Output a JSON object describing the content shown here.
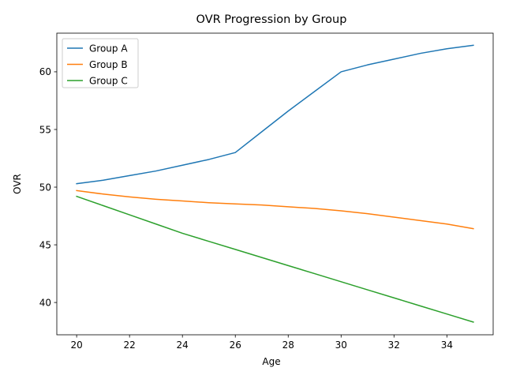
{
  "chart_data": {
    "type": "line",
    "title": "OVR Progression by Group",
    "xlabel": "Age",
    "ylabel": "OVR",
    "xlim": [
      19.25,
      35.75
    ],
    "ylim": [
      37.2,
      63.35
    ],
    "xticks": [
      20,
      22,
      24,
      26,
      28,
      30,
      32,
      34
    ],
    "yticks": [
      40,
      45,
      50,
      55,
      60
    ],
    "grid": false,
    "legend_position": "top-left",
    "x": [
      20,
      21,
      22,
      23,
      24,
      25,
      26,
      27,
      28,
      29,
      30,
      31,
      32,
      33,
      34,
      35
    ],
    "series": [
      {
        "name": "Group A",
        "color": "#1f77b4",
        "values": [
          50.3,
          50.6,
          51.0,
          51.4,
          51.9,
          52.4,
          53.0,
          54.8,
          56.6,
          58.3,
          60.0,
          60.6,
          61.1,
          61.6,
          62.0,
          62.3
        ]
      },
      {
        "name": "Group B",
        "color": "#ff7f0e",
        "values": [
          49.7,
          49.4,
          49.15,
          48.95,
          48.8,
          48.65,
          48.55,
          48.45,
          48.3,
          48.15,
          47.95,
          47.7,
          47.4,
          47.1,
          46.8,
          46.4
        ]
      },
      {
        "name": "Group C",
        "color": "#2ca02c",
        "values": [
          49.2,
          48.4,
          47.6,
          46.8,
          46.0,
          45.3,
          44.6,
          43.9,
          43.2,
          42.5,
          41.8,
          41.1,
          40.4,
          39.7,
          39.0,
          38.3
        ]
      }
    ]
  }
}
